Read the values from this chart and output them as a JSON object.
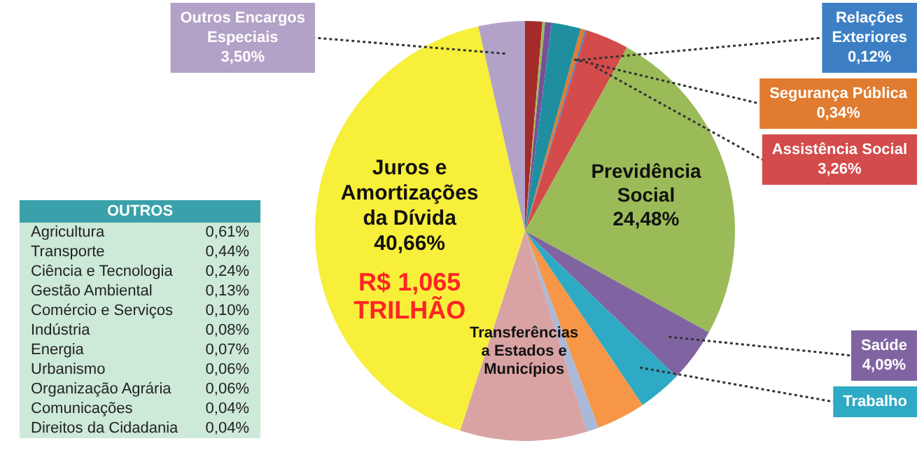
{
  "chart_data": [
    {
      "type": "pie",
      "categories": [
        null,
        null,
        null,
        null,
        "Segurança Pública",
        "Relações Exteriores",
        "Assistência Social",
        "Previdência Social",
        "Saúde",
        "Trabalho",
        null,
        null,
        "Transferências a Estados e Municípios",
        "Juros e Amortizações da Dívida",
        "Outros Encargos Especiais"
      ],
      "values": [
        1.3,
        0.2,
        0.5,
        2.2,
        0.34,
        0.12,
        3.26,
        24.48,
        4.09,
        3.3,
        3.7,
        0.9,
        9.58,
        40.66,
        3.5
      ],
      "value_labels": [
        null,
        null,
        null,
        null,
        "0,34%",
        "0,12%",
        "3,26%",
        "24,48%",
        "4,09%",
        null,
        null,
        null,
        null,
        "40,66%",
        "3,50%"
      ],
      "colors": [
        "#a52a2a",
        "#9bbb59",
        "#7a4f9a",
        "#1f8fa0",
        "#e07b30",
        "#3d7fc4",
        "#d34b4b",
        "#9bbb59",
        "#8064a2",
        "#2eaac4",
        "#f79646",
        "#a9b9d9",
        "#d9a3a3",
        "#f7ef3a",
        "#b3a2c7"
      ],
      "annotations": [
        "R$ 1,065 TRILHÃO"
      ]
    },
    {
      "type": "other",
      "title": "OUTROS",
      "categories": [
        "Agricultura",
        "Transporte",
        "Ciência e Tecnologia",
        "Gestão Ambiental",
        "Comércio e Serviços",
        "Indústria",
        "Energia",
        "Urbanismo",
        "Organização Agrária",
        "Comunicações",
        "Direitos da Cidadania"
      ],
      "value_labels": [
        "0,61%",
        "0,44%",
        "0,24%",
        "0,13%",
        "0,10%",
        "0,08%",
        "0,07%",
        "0,06%",
        "0,06%",
        "0,04%",
        "0,04%"
      ]
    }
  ]
}
